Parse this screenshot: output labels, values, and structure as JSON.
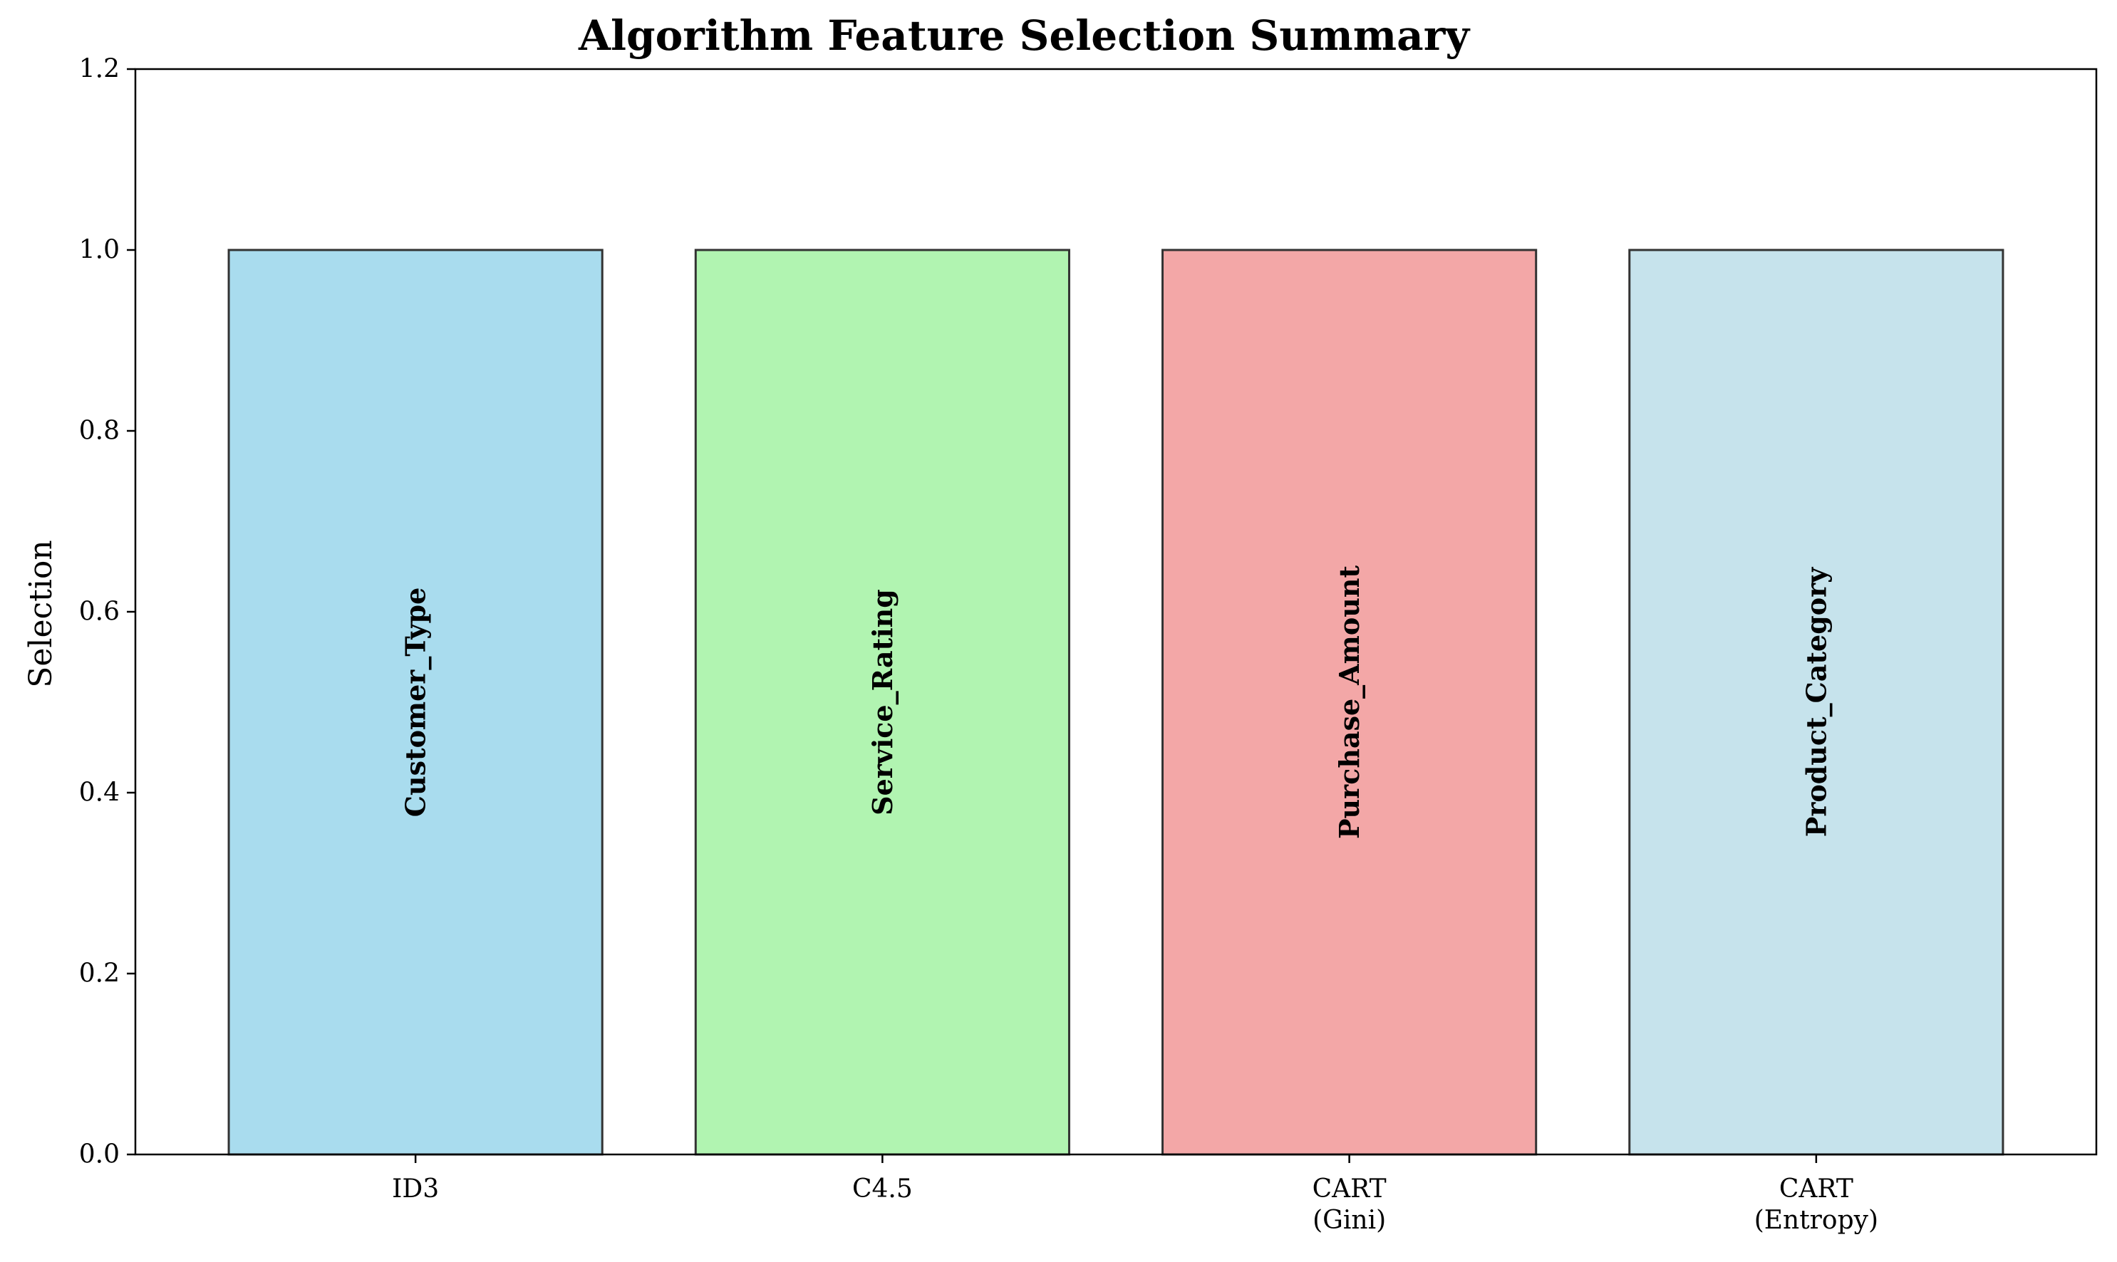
{
  "chart_data": {
    "type": "bar",
    "title": "Algorithm Feature Selection Summary",
    "xlabel": "",
    "ylabel": "Selection",
    "ylim": [
      0,
      1.2
    ],
    "yticks": [
      "0.0",
      "0.2",
      "0.4",
      "0.6",
      "0.8",
      "1.0",
      "1.2"
    ],
    "grid": false,
    "legend": false,
    "categories": [
      [
        "ID3"
      ],
      [
        "C4.5"
      ],
      [
        "CART",
        "(Gini)"
      ],
      [
        "CART",
        "(Entropy)"
      ]
    ],
    "values": [
      1.0,
      1.0,
      1.0,
      1.0
    ],
    "bar_labels": [
      "Customer_Type",
      "Service_Rating",
      "Purchase_Amount",
      "Product_Category"
    ],
    "colors": [
      "#a9dcee",
      "#b1f4b1",
      "#f3a7a7",
      "#c6e3ec"
    ],
    "edge_color": "#333333"
  }
}
